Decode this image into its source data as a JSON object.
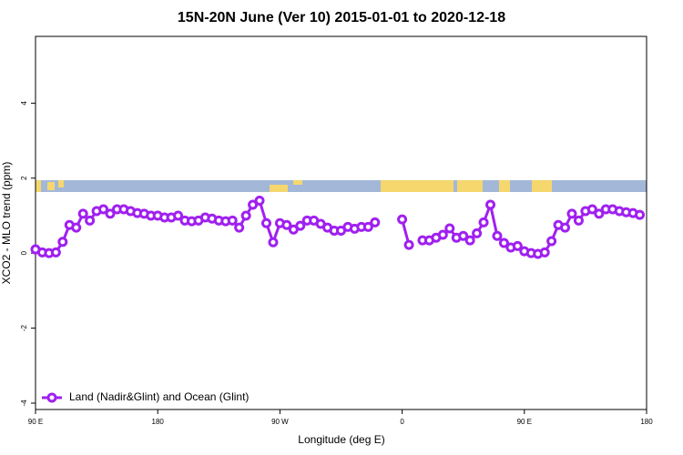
{
  "chart_data": {
    "type": "line",
    "title": "15N-20N June (Ver 10)   2015-01-01 to 2020-12-18",
    "x_label": "Longitude (deg E)",
    "y_label": "XCO2 - MLO trend (ppm)",
    "xlim": [
      90,
      540
    ],
    "ylim": [
      -4.17,
      5.78
    ],
    "xticks": [
      {
        "value": 90,
        "label": "90 E"
      },
      180,
      {
        "value": 270,
        "label": "90 W"
      },
      {
        "value": 360,
        "label": "0"
      },
      {
        "value": 450,
        "label": "90 E"
      },
      {
        "value": 540,
        "label": "180"
      }
    ],
    "yticks": [
      -4,
      -2,
      0,
      2,
      4
    ],
    "legend": "bottom-left",
    "x": [
      90,
      95,
      100,
      105,
      110,
      115,
      120,
      125,
      130,
      135,
      140,
      145,
      150,
      155,
      160,
      165,
      170,
      175,
      180,
      185,
      190,
      195,
      200,
      205,
      210,
      215,
      220,
      225,
      230,
      235,
      240,
      245,
      250,
      255,
      260,
      265,
      270,
      275,
      280,
      285,
      290,
      295,
      300,
      305,
      310,
      315,
      320,
      325,
      330,
      335,
      340,
      345,
      350,
      355,
      360,
      365,
      370,
      375,
      380,
      385,
      390,
      395,
      400,
      405,
      410,
      415,
      420,
      425,
      430,
      435,
      440,
      445,
      450,
      455,
      460,
      465,
      470,
      475,
      480,
      485,
      490,
      495,
      500,
      505,
      510,
      515,
      520,
      525,
      530,
      535
    ],
    "series": [
      {
        "name": "Land (Nadir&Glint) and Ocean (Glint)",
        "color": "#a020f0",
        "values": [
          0.1,
          0.02,
          0,
          0.02,
          0.3,
          0.75,
          0.68,
          1.05,
          0.87,
          1.12,
          1.17,
          1.05,
          1.17,
          1.17,
          1.12,
          1.07,
          1.05,
          1.0,
          1.0,
          0.95,
          0.95,
          1.0,
          0.87,
          0.85,
          0.87,
          0.95,
          0.92,
          0.87,
          0.85,
          0.87,
          0.68,
          1.0,
          1.29,
          1.4,
          0.8,
          0.29,
          0.8,
          0.75,
          0.63,
          0.73,
          0.87,
          0.87,
          0.78,
          0.68,
          0.6,
          0.6,
          0.7,
          0.65,
          0.7,
          0.7,
          0.82,
          null,
          null,
          null,
          0.9,
          0.22,
          null,
          0.34,
          0.34,
          0.41,
          0.49,
          0.66,
          0.41,
          0.46,
          0.34,
          0.53,
          0.82,
          1.29,
          0.46,
          0.27,
          0.15,
          0.19,
          0.05,
          0,
          -0.02,
          0.02,
          0.32,
          0.75,
          0.68,
          1.05,
          0.87,
          1.12,
          1.17,
          1.05,
          1.17,
          1.17,
          1.12,
          1.09,
          1.07,
          1.02
        ]
      }
    ]
  }
}
